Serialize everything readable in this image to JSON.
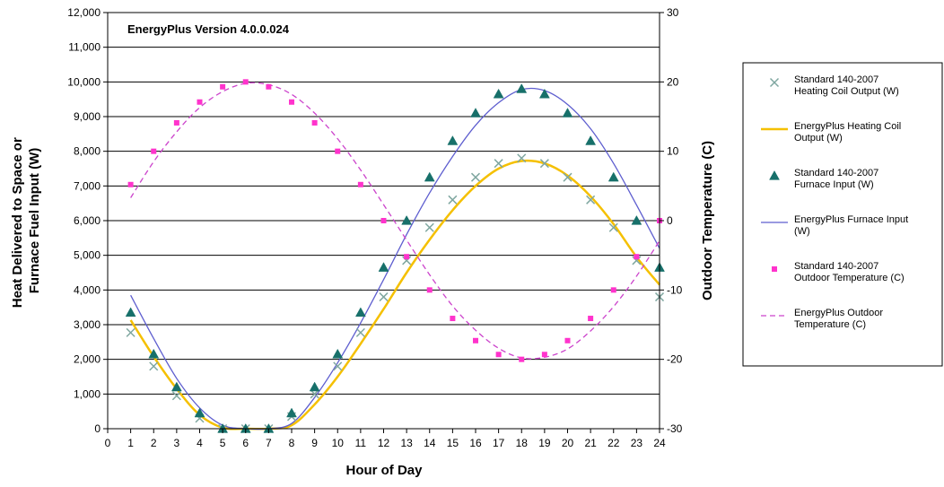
{
  "chart_data": {
    "type": "line",
    "title": "EnergyPlus Version 4.0.0.024",
    "xlabel": "Hour of Day",
    "ylabel_lines": [
      "Heat Delivered to Space or",
      "Furnace Fuel Input (W)"
    ],
    "y2label": "Outdoor Temperature (C)",
    "xlim": [
      0,
      24
    ],
    "ylim": [
      0,
      12000
    ],
    "y2lim": [
      -30,
      30
    ],
    "x_ticks": [
      0,
      1,
      2,
      3,
      4,
      5,
      6,
      7,
      8,
      9,
      10,
      11,
      12,
      13,
      14,
      15,
      16,
      17,
      18,
      19,
      20,
      21,
      22,
      23,
      24
    ],
    "x_tick_labels": [
      "0",
      "1",
      "2",
      "3",
      "4",
      "5",
      "6",
      "7",
      "8",
      "9",
      "10",
      "11",
      "12",
      "13",
      "14",
      "15",
      "16",
      "17",
      "18",
      "19",
      "20",
      "21",
      "22",
      "23",
      "24"
    ],
    "y_ticks": [
      0,
      1000,
      2000,
      3000,
      4000,
      5000,
      6000,
      7000,
      8000,
      9000,
      10000,
      11000,
      12000
    ],
    "y_tick_labels": [
      "0",
      "1,000",
      "2,000",
      "3,000",
      "4,000",
      "5,000",
      "6,000",
      "7,000",
      "8,000",
      "9,000",
      "10,000",
      "11,000",
      "12,000"
    ],
    "y2_ticks": [
      -30,
      -20,
      -10,
      0,
      10,
      20,
      30
    ],
    "y2_tick_labels": [
      "-30",
      "-20",
      "-10",
      "0",
      "10",
      "20",
      "30"
    ],
    "grid": "horizontal",
    "legend_position": "right",
    "hours": [
      1,
      2,
      3,
      4,
      5,
      6,
      7,
      8,
      9,
      10,
      11,
      12,
      13,
      14,
      15,
      16,
      17,
      18,
      19,
      20,
      21,
      22,
      23,
      24
    ],
    "series": [
      {
        "name": "Standard 140-2007 Heating Coil Output (W)",
        "legend_lines": [
          "Standard 140-2007",
          "Heating Coil Output (W)"
        ],
        "kind": "marker",
        "marker": "x",
        "axis": "left",
        "color": "#7fa7a0",
        "values": [
          2770,
          1800,
          950,
          300,
          0,
          0,
          0,
          350,
          1000,
          1800,
          2770,
          3800,
          4850,
          5800,
          6600,
          7250,
          7650,
          7800,
          7650,
          7250,
          6600,
          5800,
          4850,
          3800
        ]
      },
      {
        "name": "EnergyPlus Heating Coil Output (W)",
        "legend_lines": [
          "EnergyPlus Heating Coil",
          "Output (W)"
        ],
        "kind": "line",
        "axis": "left",
        "color": "#f5c000",
        "values": [
          3130,
          2080,
          1150,
          400,
          30,
          0,
          0,
          100,
          700,
          1500,
          2450,
          3450,
          4500,
          5450,
          6300,
          7000,
          7500,
          7720,
          7650,
          7300,
          6700,
          5900,
          4950,
          4150
        ]
      },
      {
        "name": "Standard 140-2007 Furnace Input (W)",
        "legend_lines": [
          "Standard 140-2007",
          "Furnace Input (W)"
        ],
        "kind": "marker",
        "marker": "triangle",
        "axis": "left",
        "color": "#17706a",
        "values": [
          3350,
          2150,
          1200,
          450,
          0,
          0,
          0,
          450,
          1200,
          2150,
          3350,
          4650,
          6000,
          7250,
          8300,
          9100,
          9650,
          9800,
          9650,
          9100,
          8300,
          7250,
          6000,
          4650
        ]
      },
      {
        "name": "EnergyPlus Furnace Input (W)",
        "legend_lines": [
          "EnergyPlus Furnace Input",
          "(W)"
        ],
        "kind": "line",
        "axis": "left",
        "color": "#5e5ecf",
        "values": [
          3850,
          2600,
          1450,
          600,
          100,
          0,
          0,
          150,
          900,
          1900,
          3050,
          4300,
          5600,
          6800,
          7850,
          8750,
          9400,
          9780,
          9750,
          9350,
          8650,
          7650,
          6450,
          5200
        ]
      },
      {
        "name": "Standard 140-2007 Outdoor Temperature (C)",
        "legend_lines": [
          "Standard 140-2007",
          "Outdoor Temperature (C)"
        ],
        "kind": "marker",
        "marker": "square",
        "axis": "right",
        "color": "#ff33cc",
        "values": [
          5.2,
          10,
          14.1,
          17.1,
          19.3,
          20,
          19.3,
          17.1,
          14.1,
          10,
          5.2,
          0,
          -5.2,
          -10,
          -14.1,
          -17.3,
          -19.3,
          -20,
          -19.3,
          -17.3,
          -14.1,
          -10,
          -5.2,
          0
        ]
      },
      {
        "name": "EnergyPlus Outdoor Temperature (C)",
        "legend_lines": [
          "EnergyPlus Outdoor",
          "Temperature (C)"
        ],
        "kind": "line",
        "dashed": true,
        "axis": "right",
        "color": "#cc44cc",
        "values": [
          3.3,
          8.5,
          12.8,
          16.3,
          18.6,
          19.8,
          19.6,
          18.2,
          15.5,
          11.8,
          7.3,
          2.3,
          -2.8,
          -7.8,
          -12.3,
          -15.8,
          -18.4,
          -19.8,
          -19.7,
          -18.5,
          -15.9,
          -12.4,
          -8.0,
          -2.9
        ]
      }
    ]
  }
}
